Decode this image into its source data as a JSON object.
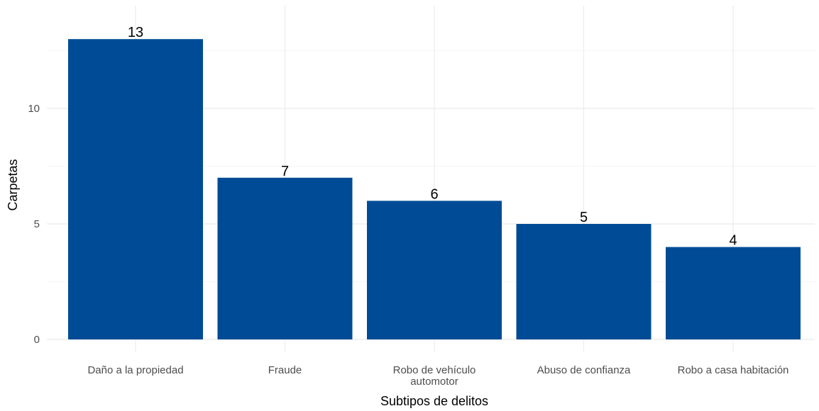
{
  "chart_data": {
    "type": "bar",
    "title": "",
    "xlabel": "Subtipos de delitos",
    "ylabel": "Carpetas",
    "categories": [
      "Daño a la propiedad",
      "Fraude",
      "Robo de vehículo automotor",
      "Abuso de confianza",
      "Robo a casa habitación"
    ],
    "category_label_lines": [
      [
        "Daño a la propiedad"
      ],
      [
        "Fraude"
      ],
      [
        "Robo de vehículo",
        "automotor"
      ],
      [
        "Abuso de confianza"
      ],
      [
        "Robo a casa habitación"
      ]
    ],
    "values": [
      13,
      7,
      6,
      5,
      4
    ],
    "data_labels": [
      "13",
      "7",
      "6",
      "5",
      "4"
    ],
    "yticks": [
      0,
      5,
      10
    ],
    "ytick_labels": [
      "0",
      "5",
      "10"
    ],
    "ylim": [
      0,
      13.65
    ],
    "grid": true,
    "bar_color": "#004B96"
  }
}
